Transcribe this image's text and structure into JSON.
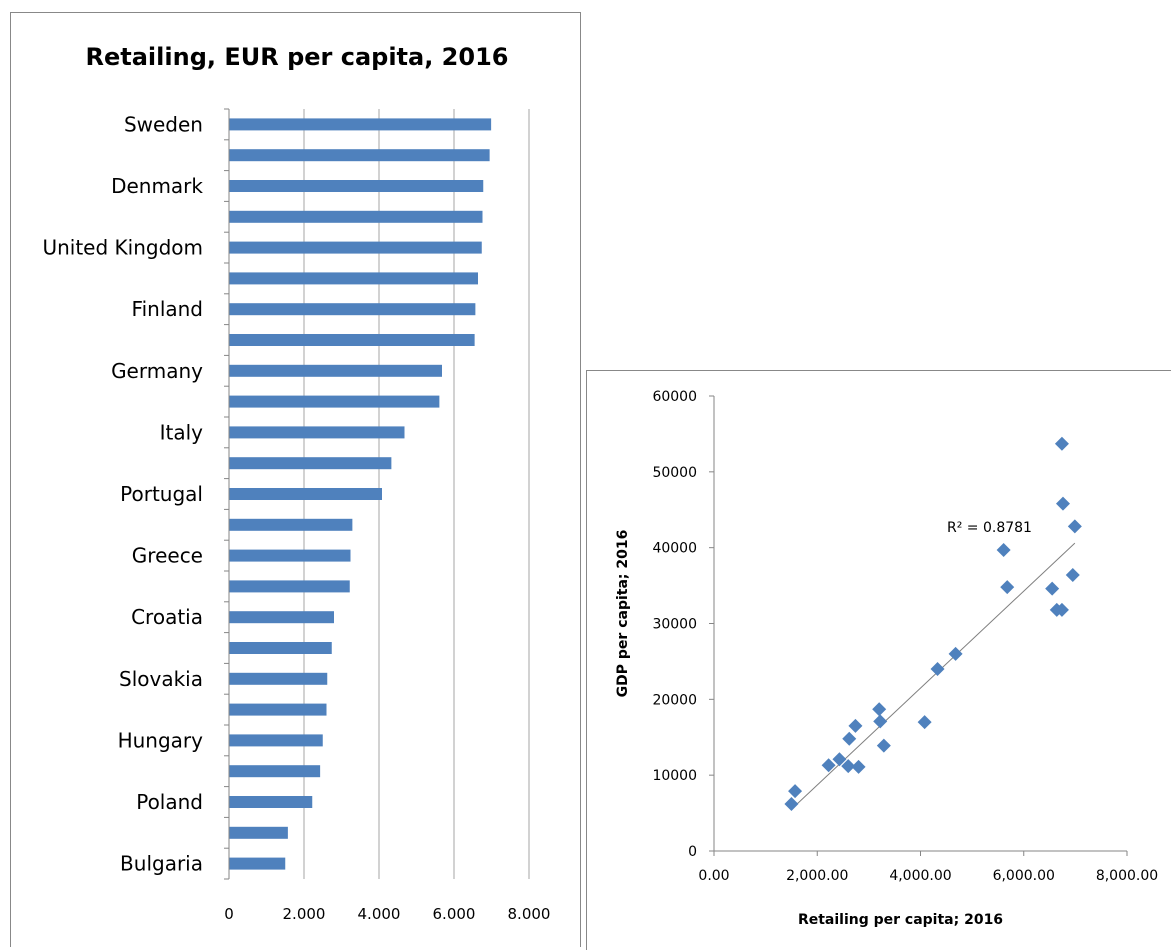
{
  "chart_data": [
    {
      "type": "bar",
      "orientation": "horizontal",
      "title": "Retailing, EUR per capita, 2016",
      "categories": [
        "Sweden",
        "",
        "Denmark",
        "",
        "United Kingdom",
        "",
        "Finland",
        "",
        "Germany",
        "",
        "Italy",
        "",
        "Portugal",
        "",
        "Greece",
        "",
        "Croatia",
        "",
        "Slovakia",
        "",
        "Hungary",
        "",
        "Poland",
        "",
        "Bulgaria"
      ],
      "values": [
        6990,
        6950,
        6780,
        6760,
        6740,
        6640,
        6570,
        6550,
        5680,
        5610,
        4680,
        4330,
        4080,
        3290,
        3240,
        3220,
        2800,
        2740,
        2620,
        2600,
        2500,
        2430,
        2220,
        1570,
        1500
      ],
      "xlim": [
        0,
        8000
      ],
      "xticks": [
        "0",
        "2.000",
        "4.000",
        "6.000",
        "8.000"
      ],
      "xtick_values": [
        0,
        2000,
        4000,
        6000,
        8000
      ],
      "grid": "vertical",
      "color": "#4f81bd"
    },
    {
      "type": "scatter",
      "xlabel": "Retailing per capita; 2016",
      "ylabel": "GDP per capita; 2016",
      "xlim": [
        0,
        8000
      ],
      "ylim": [
        0,
        60000
      ],
      "xticks": [
        "0.00",
        "2,000.00",
        "4,000.00",
        "6,000.00",
        "8,000.00"
      ],
      "xtick_values": [
        0,
        2000,
        4000,
        6000,
        8000
      ],
      "yticks": [
        "0",
        "10000",
        "20000",
        "30000",
        "40000",
        "50000",
        "60000"
      ],
      "ytick_values": [
        0,
        10000,
        20000,
        30000,
        40000,
        50000,
        60000
      ],
      "points": [
        {
          "x": 1500,
          "y": 6200
        },
        {
          "x": 1570,
          "y": 7900
        },
        {
          "x": 2220,
          "y": 11300
        },
        {
          "x": 2430,
          "y": 12100
        },
        {
          "x": 2600,
          "y": 11200
        },
        {
          "x": 2620,
          "y": 14800
        },
        {
          "x": 2740,
          "y": 16500
        },
        {
          "x": 2800,
          "y": 11100
        },
        {
          "x": 3200,
          "y": 18700
        },
        {
          "x": 3220,
          "y": 17100
        },
        {
          "x": 3290,
          "y": 13900
        },
        {
          "x": 4080,
          "y": 17000
        },
        {
          "x": 4330,
          "y": 24000
        },
        {
          "x": 4680,
          "y": 26000
        },
        {
          "x": 5610,
          "y": 39700
        },
        {
          "x": 5680,
          "y": 34800
        },
        {
          "x": 6550,
          "y": 34600
        },
        {
          "x": 6640,
          "y": 31800
        },
        {
          "x": 6740,
          "y": 31800
        },
        {
          "x": 6740,
          "y": 53700
        },
        {
          "x": 6760,
          "y": 45800
        },
        {
          "x": 6950,
          "y": 36400
        },
        {
          "x": 6990,
          "y": 42800
        }
      ],
      "trendline": {
        "x1": 1500,
        "y1": 5500,
        "x2": 6990,
        "y2": 40600
      },
      "annotation": "R² = 0.8781",
      "color": "#4f81bd"
    }
  ]
}
